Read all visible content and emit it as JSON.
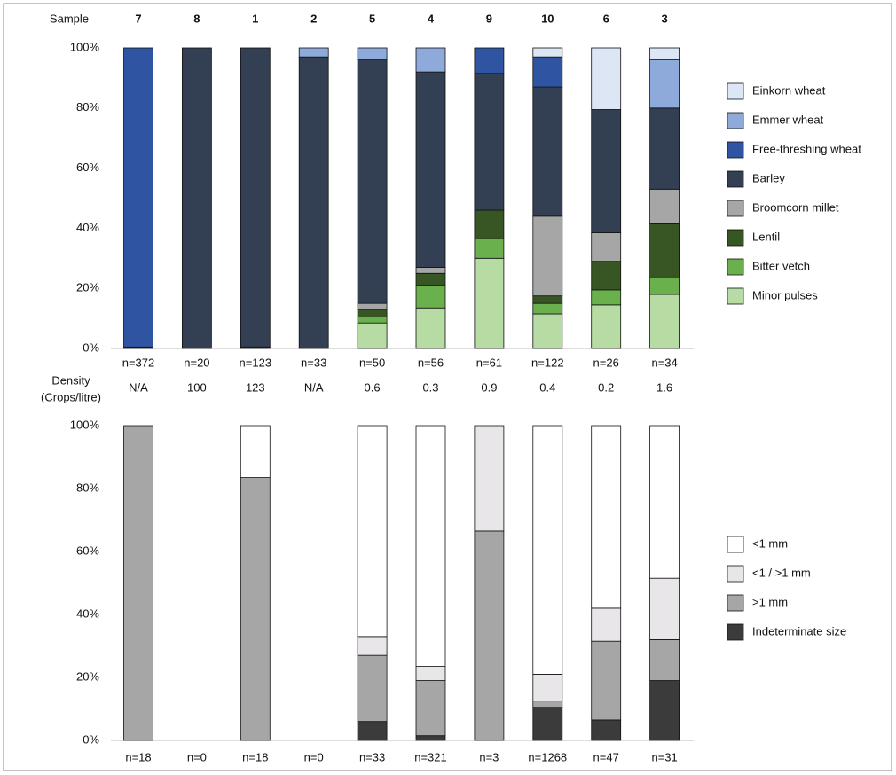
{
  "chart_data": [
    {
      "type": "bar",
      "stacked": true,
      "category_label": "Sample",
      "categories": [
        "7",
        "8",
        "1",
        "2",
        "5",
        "4",
        "9",
        "10",
        "6",
        "3"
      ],
      "sample_sizes": [
        "n=372",
        "n=20",
        "n=123",
        "n=33",
        "n=50",
        "n=56",
        "n=61",
        "n=122",
        "n=26",
        "n=34"
      ],
      "density_label": [
        "Density",
        "(Crops/litre)"
      ],
      "density": [
        "N/A",
        "100",
        "123",
        "N/A",
        "0.6",
        "0.3",
        "0.9",
        "0.4",
        "0.2",
        "1.6"
      ],
      "ylim": [
        0,
        100
      ],
      "yticks": [
        {
          "value": 0,
          "label": "0%"
        },
        {
          "value": 20,
          "label": "20%"
        },
        {
          "value": 40,
          "label": "40%"
        },
        {
          "value": 60,
          "label": "60%"
        },
        {
          "value": 80,
          "label": "80%"
        },
        {
          "value": 100,
          "label": "100%"
        }
      ],
      "series": [
        {
          "name": "Minor pulses",
          "color": "#b7dca3",
          "values": [
            0,
            0,
            0,
            0,
            8.5,
            13.5,
            30,
            11.5,
            14.5,
            18
          ]
        },
        {
          "name": "Bitter vetch",
          "color": "#6ab04c",
          "values": [
            0,
            0,
            0,
            0,
            2,
            7.5,
            6.5,
            3.5,
            5,
            5.5
          ]
        },
        {
          "name": "Lentil",
          "color": "#375623",
          "values": [
            0,
            0,
            0.5,
            0,
            2.5,
            4,
            9.5,
            2.5,
            9.5,
            18
          ]
        },
        {
          "name": "Broomcorn millet",
          "color": "#a6a6a6",
          "values": [
            0,
            0,
            0,
            0,
            2,
            2,
            0,
            26.5,
            9.5,
            11.5
          ]
        },
        {
          "name": "Barley",
          "color": "#333f52",
          "values": [
            0.5,
            100,
            99.5,
            97,
            81,
            65,
            45.5,
            43,
            41,
            27
          ]
        },
        {
          "name": "Free-threshing wheat",
          "color": "#2f55a2",
          "values": [
            99.5,
            0,
            0,
            0,
            0,
            0,
            8.5,
            10,
            0,
            0
          ]
        },
        {
          "name": "Emmer wheat",
          "color": "#8eaadb",
          "values": [
            0,
            0,
            0,
            3,
            4,
            8,
            0,
            0,
            0,
            16
          ]
        },
        {
          "name": "Einkorn wheat",
          "color": "#dce6f4",
          "values": [
            0,
            0,
            0,
            0,
            0,
            0,
            0,
            3,
            20.5,
            4
          ]
        }
      ]
    },
    {
      "type": "bar",
      "stacked": true,
      "sample_sizes": [
        "n=18",
        "n=0",
        "n=18",
        "n=0",
        "n=33",
        "n=321",
        "n=3",
        "n=1268",
        "n=47",
        "n=31"
      ],
      "ylim": [
        0,
        100
      ],
      "yticks": [
        {
          "value": 0,
          "label": "0%"
        },
        {
          "value": 20,
          "label": "20%"
        },
        {
          "value": 40,
          "label": "40%"
        },
        {
          "value": 60,
          "label": "60%"
        },
        {
          "value": 80,
          "label": "80%"
        },
        {
          "value": 100,
          "label": "100%"
        }
      ],
      "series": [
        {
          "name": "Indeterminate size",
          "color": "#3b3b3b",
          "values": [
            0,
            null,
            0,
            null,
            6,
            1.5,
            0,
            10.5,
            6.5,
            19
          ]
        },
        {
          "name": ">1 mm",
          "color": "#a6a6a6",
          "values": [
            100,
            null,
            83.5,
            null,
            21,
            17.5,
            66.5,
            2,
            25,
            13
          ]
        },
        {
          "name": "<1 / >1 mm",
          "color": "#e9e6e9",
          "values": [
            0,
            null,
            0,
            null,
            6,
            4.5,
            33.5,
            8.5,
            10.5,
            19.5
          ]
        },
        {
          "name": "<1 mm",
          "color": "#ffffff",
          "values": [
            0,
            null,
            16.5,
            null,
            67,
            76.5,
            0,
            79,
            58,
            48.5
          ]
        }
      ]
    }
  ]
}
